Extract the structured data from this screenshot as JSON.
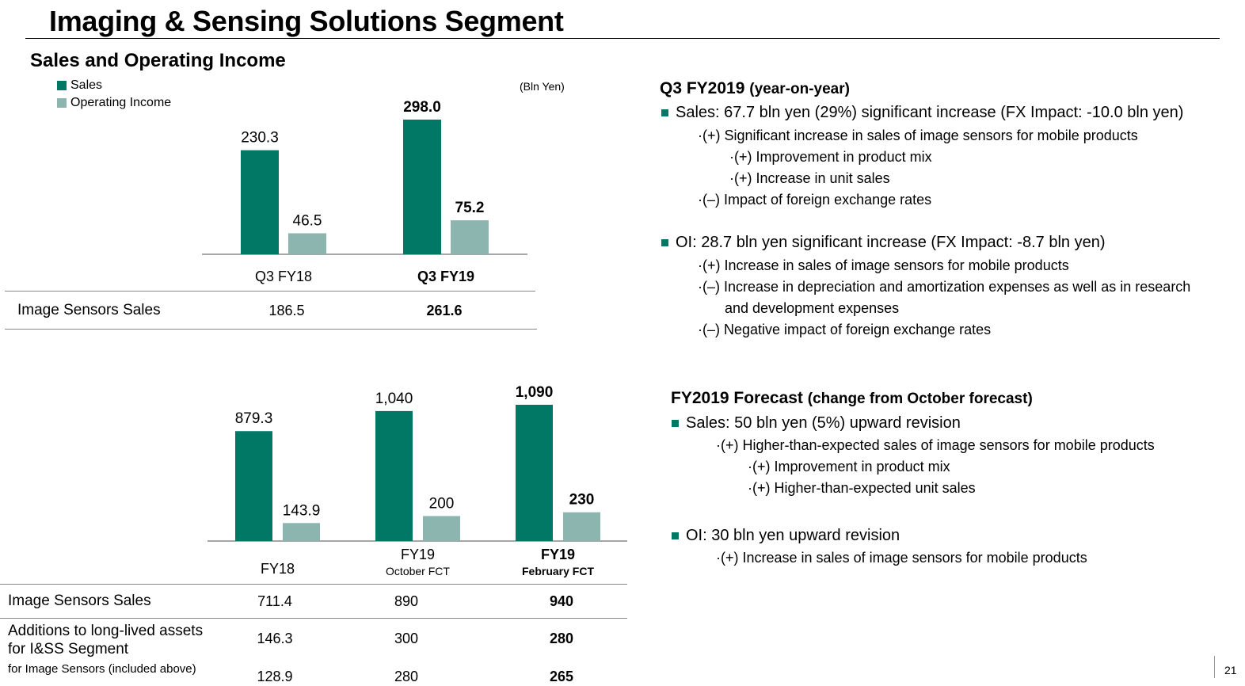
{
  "title": "Imaging & Sensing Solutions Segment",
  "subtitle": "Sales and Operating Income",
  "unit": "(Bln Yen)",
  "colors": {
    "sales": "#007866",
    "oi": "#8bb5ae",
    "axis": "#888888"
  },
  "legend": {
    "sales": "Sales",
    "oi": "Operating Income"
  },
  "chart_data": [
    {
      "type": "bar",
      "categories": [
        "Q3 FY18",
        "Q3 FY19"
      ],
      "bold_categories": [
        false,
        true
      ],
      "series": [
        {
          "name": "Sales",
          "values": [
            230.3,
            298.0
          ],
          "labels": [
            "230.3",
            "298.0"
          ]
        },
        {
          "name": "Operating Income",
          "values": [
            46.5,
            75.2
          ],
          "labels": [
            "46.5",
            "75.2"
          ]
        }
      ]
    },
    {
      "type": "bar",
      "categories": [
        "FY18",
        "FY19",
        "FY19"
      ],
      "category_sublabels": [
        "",
        "October FCT",
        "February FCT"
      ],
      "bold_categories": [
        false,
        false,
        true
      ],
      "series": [
        {
          "name": "Sales",
          "values": [
            879.3,
            1040,
            1090
          ],
          "labels": [
            "879.3",
            "1,040",
            "1,090"
          ]
        },
        {
          "name": "Operating Income",
          "values": [
            143.9,
            200,
            230
          ],
          "labels": [
            "143.9",
            "200",
            "230"
          ]
        }
      ]
    }
  ],
  "table1": {
    "label": "Image Sensors Sales",
    "values": [
      "186.5",
      "261.6"
    ]
  },
  "table2": {
    "row1_label": "Image Sensors Sales",
    "row1_values": [
      "711.4",
      "890",
      "940"
    ],
    "row2_label_line1": "Additions to long-lived assets",
    "row2_label_line2": "for I&SS Segment",
    "row2_values": [
      "146.3",
      "300",
      "280"
    ],
    "row3_label": "for Image Sensors (included above)",
    "row3_values": [
      "128.9",
      "280",
      "265"
    ]
  },
  "q3": {
    "heading": "Q3 FY2019",
    "heading_suffix": "(year-on-year)",
    "sales_bullet": "Sales: 67.7 bln yen (29%) significant increase (FX Impact: -10.0 bln yen)",
    "sales_items": [
      "·(+) Significant increase in sales of image sensors for mobile products",
      "·(+) Improvement in product mix",
      "·(+) Increase in unit sales",
      "·(–) Impact of foreign exchange rates"
    ],
    "oi_bullet": "OI: 28.7 bln yen significant increase (FX Impact: -8.7 bln yen)",
    "oi_items": [
      "·(+) Increase in sales of image sensors for mobile products",
      "·(–) Increase in depreciation and amortization expenses as well as in research",
      "and development expenses",
      "·(–) Negative impact of foreign exchange rates"
    ]
  },
  "fy": {
    "heading": "FY2019 Forecast",
    "heading_suffix": "(change from October forecast)",
    "sales_bullet": "Sales: 50 bln yen (5%) upward revision",
    "sales_items": [
      "·(+) Higher-than-expected sales of image sensors for mobile products",
      "·(+) Improvement in product mix",
      "·(+) Higher-than-expected unit sales"
    ],
    "oi_bullet": "OI: 30 bln yen upward revision",
    "oi_items": [
      "·(+) Increase in sales of image sensors for mobile products"
    ]
  },
  "page_number": "21"
}
